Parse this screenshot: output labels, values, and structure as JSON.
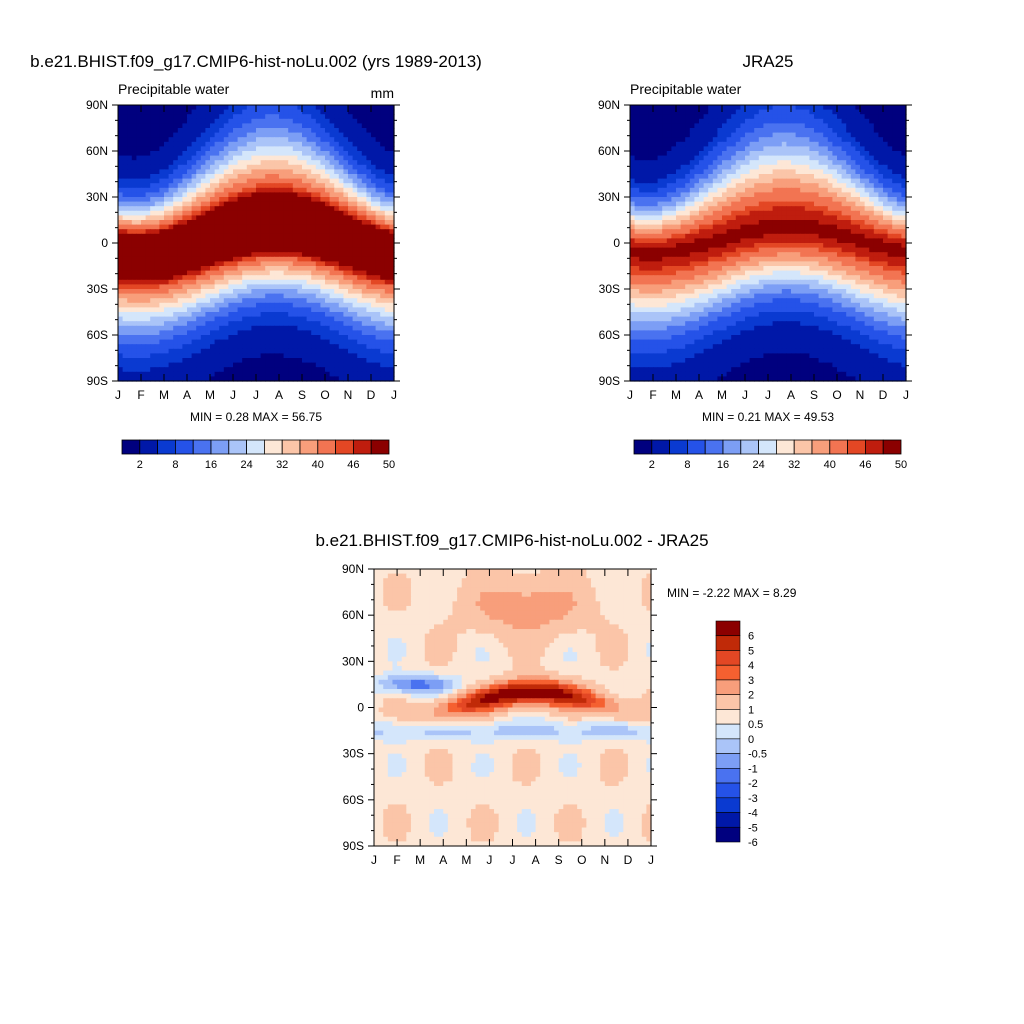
{
  "chart_data": [
    {
      "type": "heatmap",
      "title": "b.e21.BHIST.f09_g17.CMIP6-hist-noLu.002 (yrs 1989-2013)",
      "subtitle": "Precipitable water",
      "units": "mm",
      "x": [
        "J",
        "F",
        "M",
        "A",
        "M",
        "J",
        "J",
        "A",
        "S",
        "O",
        "N",
        "D",
        "J"
      ],
      "y": [
        "90N",
        "60N",
        "30N",
        "0",
        "30S",
        "60S",
        "90S"
      ],
      "stats": "MIN =   0.28 MAX =  56.75",
      "colorbar": {
        "labels": [
          "2",
          "8",
          "16",
          "24",
          "32",
          "40",
          "46",
          "50"
        ]
      },
      "ridge_peak_month": "Jul-Aug"
    },
    {
      "type": "heatmap",
      "title": "JRA25",
      "subtitle": "Precipitable water",
      "x": [
        "J",
        "F",
        "M",
        "A",
        "M",
        "J",
        "J",
        "A",
        "S",
        "O",
        "N",
        "D",
        "J"
      ],
      "y": [
        "90N",
        "60N",
        "30N",
        "0",
        "30S",
        "60S",
        "90S"
      ],
      "stats": "MIN =   0.21 MAX =  49.53",
      "colorbar": {
        "labels": [
          "2",
          "8",
          "16",
          "24",
          "32",
          "40",
          "46",
          "50"
        ]
      },
      "ridge_peak_month": "Jul-Aug"
    },
    {
      "type": "heatmap",
      "title": "b.e21.BHIST.f09_g17.CMIP6-hist-noLu.002 - JRA25",
      "x": [
        "J",
        "F",
        "M",
        "A",
        "M",
        "J",
        "J",
        "A",
        "S",
        "O",
        "N",
        "D",
        "J"
      ],
      "y": [
        "90N",
        "60N",
        "30N",
        "0",
        "30S",
        "60S",
        "90S"
      ],
      "stats": "MIN =  -2.22 MAX =   8.29",
      "colorbar": {
        "labels": [
          "6",
          "5",
          "4",
          "3",
          "2",
          "1",
          "0.5",
          "0",
          "-0.5",
          "-1",
          "-2",
          "-3",
          "-4",
          "-5",
          "-6"
        ]
      }
    }
  ],
  "colors": {
    "scale": [
      "#00007f",
      "#0018a8",
      "#0a3ad1",
      "#2552e8",
      "#4a72f0",
      "#7c9ef5",
      "#aac4f8",
      "#d4e6fb",
      "#fde7d6",
      "#fbc5a8",
      "#f89e7b",
      "#f27452",
      "#e34724",
      "#bf1d0e",
      "#8b0000"
    ],
    "diff": [
      "#8b0000",
      "#c02a08",
      "#e34724",
      "#f56030",
      "#f89e7b",
      "#fbc5a8",
      "#fde7d6",
      "#d4e6fb",
      "#aac4f8",
      "#7c9ef5",
      "#4a72f0",
      "#2552e8",
      "#0a3ad1",
      "#0018a8",
      "#00007f"
    ]
  }
}
